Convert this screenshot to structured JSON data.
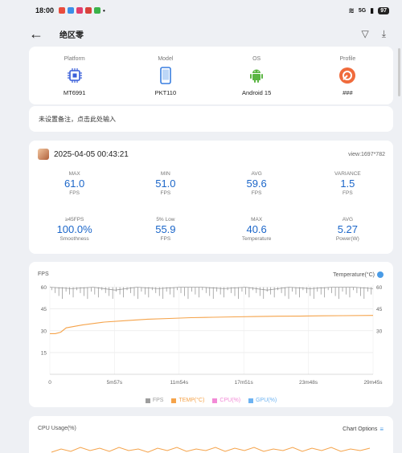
{
  "status_bar": {
    "time": "18:00",
    "battery": "97",
    "network": "5G"
  },
  "app_bar": {
    "title": "绝区零"
  },
  "device_info": [
    {
      "label": "Platform",
      "value": "MT6991",
      "icon": "chip-icon"
    },
    {
      "label": "Model",
      "value": "PKT110",
      "icon": "phone-icon"
    },
    {
      "label": "OS",
      "value": "Android 15",
      "icon": "android-icon"
    },
    {
      "label": "Profile",
      "value": "###",
      "icon": "profile-icon"
    }
  ],
  "remark_placeholder": "未设置备注，点击此处输入",
  "session": {
    "datetime": "2025-04-05 00:43:21",
    "view": "view:1697*782",
    "stats": [
      {
        "label": "MAX",
        "value": "61.0",
        "unit": "FPS"
      },
      {
        "label": "MIN",
        "value": "51.0",
        "unit": "FPS"
      },
      {
        "label": "AVG",
        "value": "59.6",
        "unit": "FPS"
      },
      {
        "label": "VARIANCE",
        "value": "1.5",
        "unit": "FPS"
      },
      {
        "label": "≥45FPS",
        "value": "100.0%",
        "unit": "Smoothness"
      },
      {
        "label": "5% Low",
        "value": "55.9",
        "unit": "FPS"
      },
      {
        "label": "MAX",
        "value": "40.6",
        "unit": "Temperature"
      },
      {
        "label": "AVG",
        "value": "5.27",
        "unit": "Power(W)"
      }
    ]
  },
  "fps_chart": {
    "left_title": "FPS",
    "right_title": "Temperature(°C)",
    "legend": [
      "FPS",
      "TEMP(°C)",
      "CPU(%)",
      "GPU(%)"
    ],
    "legend_colors": [
      "#9e9e9e",
      "#f5a34a",
      "#f28ad6",
      "#6db3f2"
    ]
  },
  "cpu_chart": {
    "title": "CPU Usage(%)",
    "options": "Chart Options"
  },
  "chart_data": {
    "type": "line",
    "x_tick_labels": [
      "0",
      "5m57s",
      "11m54s",
      "17m51s",
      "23m48s",
      "29m45s"
    ],
    "xlim_seconds": [
      0,
      1785
    ],
    "y_left_ticks": [
      15,
      30,
      45,
      60
    ],
    "y_right_ticks": [
      30,
      45,
      60
    ],
    "ylim": [
      0,
      62
    ],
    "series": [
      {
        "name": "FPS",
        "x": [
          0,
          120,
          240,
          360,
          480,
          600,
          720,
          840,
          960,
          1080,
          1200,
          1320,
          1440,
          1560,
          1680,
          1785
        ],
        "values": [
          60,
          59,
          60,
          58,
          60,
          59,
          60,
          60,
          59,
          60,
          58,
          60,
          59,
          60,
          60,
          59
        ]
      },
      {
        "name": "TEMP(°C)",
        "x": [
          0,
          30,
          60,
          90,
          180,
          300,
          420,
          540,
          660,
          780,
          900,
          1020,
          1140,
          1260,
          1380,
          1500,
          1620,
          1785
        ],
        "values": [
          28,
          28,
          29,
          32,
          34,
          36,
          37,
          38,
          38.5,
          39,
          39.3,
          39.6,
          39.8,
          40,
          40.1,
          40.3,
          40.4,
          40.6
        ]
      }
    ]
  }
}
